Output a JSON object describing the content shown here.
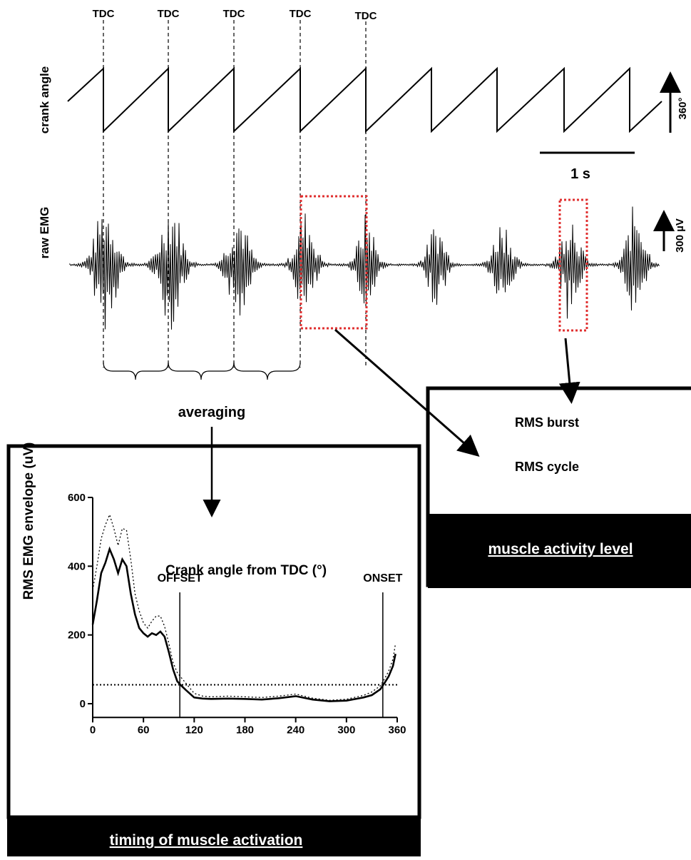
{
  "tdc_labels": [
    "TDC",
    "TDC",
    "TDC",
    "TDC",
    "TDC"
  ],
  "crank": {
    "label": "crank angle",
    "scale_label": "360°",
    "time_scale_label": "1 s"
  },
  "emg": {
    "label": "raw EMG",
    "scale_label": "300 µV"
  },
  "averaging_label": "averaging",
  "activity_box": {
    "rms_burst": "RMS burst",
    "rms_cycle": "RMS cycle",
    "footer": "muscle activity level"
  },
  "timing_box": {
    "footer": "timing of muscle activation"
  },
  "chart_data": {
    "type": "line",
    "xlabel": "Crank angle from TDC (°)",
    "ylabel": "RMS EMG envelope (uV)",
    "xlim": [
      0,
      360
    ],
    "ylim": [
      -40,
      600
    ],
    "x_ticks": [
      0,
      60,
      120,
      180,
      240,
      300,
      360
    ],
    "y_ticks": [
      0,
      200,
      400,
      600
    ],
    "threshold": 55,
    "offset": {
      "label": "OFFSET",
      "x": 103
    },
    "onset": {
      "label": "ONSET",
      "x": 343
    },
    "series": [
      {
        "style": "solid",
        "x": [
          0,
          5,
          10,
          15,
          20,
          25,
          30,
          35,
          40,
          45,
          50,
          55,
          60,
          65,
          70,
          75,
          80,
          85,
          90,
          95,
          100,
          105,
          110,
          120,
          130,
          140,
          160,
          180,
          200,
          220,
          240,
          260,
          280,
          300,
          320,
          330,
          340,
          345,
          350,
          355,
          358
        ],
        "y": [
          230,
          300,
          380,
          410,
          450,
          420,
          380,
          420,
          400,
          320,
          260,
          220,
          205,
          195,
          205,
          200,
          210,
          195,
          150,
          100,
          65,
          52,
          40,
          18,
          15,
          14,
          15,
          14,
          12,
          16,
          22,
          12,
          7,
          9,
          18,
          25,
          42,
          60,
          80,
          110,
          145
        ]
      },
      {
        "style": "dotted",
        "x": [
          0,
          5,
          10,
          15,
          20,
          25,
          30,
          35,
          40,
          45,
          50,
          55,
          60,
          65,
          70,
          75,
          80,
          85,
          90,
          95,
          100,
          105,
          110,
          120,
          130,
          140,
          160,
          180,
          200,
          220,
          240,
          260,
          280,
          300,
          320,
          330,
          340,
          345,
          350,
          355,
          358
        ],
        "y": [
          330,
          400,
          480,
          520,
          550,
          510,
          460,
          510,
          505,
          420,
          320,
          270,
          235,
          220,
          240,
          255,
          255,
          225,
          175,
          120,
          90,
          75,
          60,
          30,
          22,
          20,
          22,
          20,
          18,
          22,
          28,
          16,
          10,
          13,
          24,
          34,
          52,
          72,
          95,
          130,
          175
        ]
      }
    ]
  }
}
